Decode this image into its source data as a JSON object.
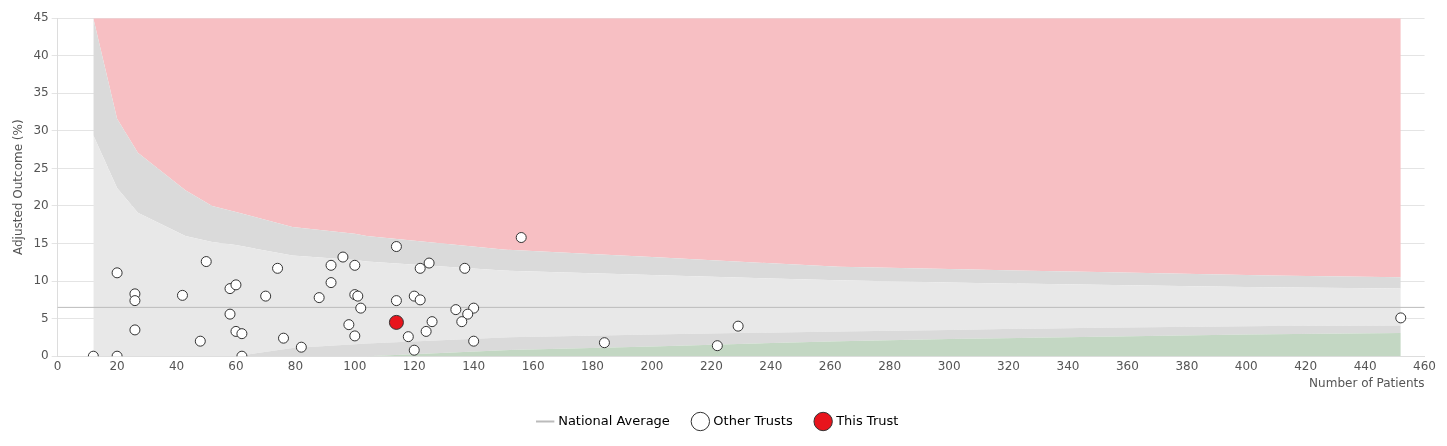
{
  "chart_data": {
    "type": "scatter",
    "xlabel": "Number of Patients",
    "ylabel": "Adjusted Outcome (%)",
    "xlim": [
      0,
      460
    ],
    "xticks": [
      0,
      20,
      40,
      60,
      80,
      100,
      120,
      140,
      160,
      180,
      200,
      220,
      240,
      260,
      280,
      300,
      320,
      340,
      360,
      380,
      400,
      420,
      440,
      460
    ],
    "ylim": [
      0,
      45
    ],
    "yticks": [
      0,
      5,
      10,
      15,
      20,
      25,
      30,
      35,
      40,
      45
    ],
    "grid": "y",
    "legend": "bottom",
    "stacked": true,
    "ref_lines": [
      {
        "axis": "y",
        "value": 6.5,
        "label": "National Average",
        "color": "#bbbbbb"
      }
    ],
    "series": [
      {
        "type": "area",
        "color": "#c3d7c3",
        "x": [
          12,
          20,
          27,
          43,
          52,
          60,
          79,
          100,
          104,
          150,
          200,
          263,
          300,
          350,
          400,
          452
        ],
        "values": [
          0,
          0,
          0,
          0,
          0,
          0,
          0,
          0,
          0,
          0.8,
          1.3,
          2.0,
          2.3,
          2.6,
          2.9,
          3.1
        ]
      },
      {
        "type": "area",
        "color": "#dadada",
        "x": [
          12,
          20,
          27,
          43,
          52,
          60,
          79,
          100,
          104,
          150,
          200,
          263,
          300,
          350,
          400,
          452
        ],
        "values": [
          0,
          0,
          0,
          0,
          0,
          0,
          1.1,
          1.6,
          1.7,
          1.7,
          1.6,
          1.3,
          1.2,
          1.2,
          1.1,
          1.0
        ]
      },
      {
        "type": "area",
        "color": "#e8e8e8",
        "x": [
          12,
          20,
          27,
          43,
          52,
          60,
          79,
          100,
          104,
          150,
          200,
          263,
          300,
          350,
          400,
          452
        ],
        "values": [
          29.4,
          22.4,
          19.1,
          16.0,
          15.2,
          14.8,
          12.3,
          11.2,
          10.9,
          8.9,
          7.9,
          6.8,
          6.3,
          5.7,
          5.2,
          4.9
        ]
      },
      {
        "type": "area",
        "color": "#dadada",
        "x": [
          12,
          20,
          27,
          43,
          52,
          60,
          79,
          100,
          104,
          150,
          200,
          263,
          300,
          350,
          400,
          452
        ],
        "values": [
          15.6,
          9.2,
          8.0,
          6.1,
          4.8,
          4.4,
          3.8,
          3.5,
          3.4,
          2.8,
          2.4,
          1.8,
          1.8,
          1.7,
          1.6,
          1.5
        ]
      },
      {
        "type": "area",
        "color": "#f7bfc3",
        "x": [
          12,
          20,
          27,
          43,
          52,
          60,
          79,
          100,
          104,
          150,
          200,
          263,
          300,
          350,
          400,
          452
        ],
        "values": [
          0,
          13.4,
          17.9,
          22.9,
          25.0,
          25.8,
          27.8,
          28.7,
          29.0,
          30.8,
          31.8,
          33.1,
          33.4,
          33.8,
          34.2,
          34.5
        ]
      },
      {
        "marker": "circle",
        "name": "Other Trusts",
        "color": "#ffffff",
        "x": [
          12,
          20,
          20,
          26,
          26,
          26,
          42,
          48,
          50,
          58,
          60,
          58,
          60,
          62,
          62,
          70,
          74,
          76,
          82,
          88,
          92,
          92,
          96,
          100,
          100,
          101,
          102,
          98,
          100,
          114,
          114,
          122,
          125,
          120,
          122,
          126,
          124,
          118,
          120,
          137,
          134,
          140,
          138,
          136,
          140,
          156,
          184,
          222,
          229,
          452
        ],
        "values": [
          0,
          0,
          11.1,
          8.3,
          7.4,
          3.5,
          8.1,
          2.0,
          12.6,
          9.0,
          9.5,
          5.6,
          3.3,
          3.0,
          0,
          8.0,
          11.7,
          2.4,
          1.2,
          7.8,
          12.1,
          9.8,
          13.2,
          12.1,
          8.2,
          8.0,
          6.4,
          4.2,
          2.7,
          14.6,
          7.4,
          11.7,
          12.4,
          8.0,
          7.5,
          4.6,
          3.3,
          2.6,
          0.8,
          11.7,
          6.2,
          6.4,
          5.6,
          4.6,
          2.0,
          15.8,
          1.8,
          1.4,
          4.0,
          5.1
        ]
      },
      {
        "marker": "circle",
        "name": "This Trust",
        "color": "#e8141c",
        "x": [
          114
        ],
        "values": [
          4.5
        ]
      }
    ]
  }
}
